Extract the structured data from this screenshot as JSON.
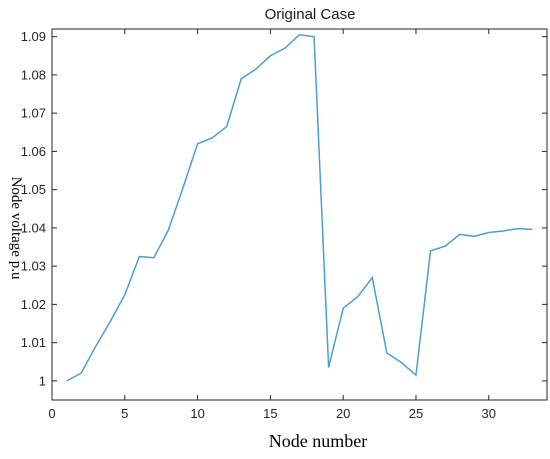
{
  "chart_data": {
    "type": "line",
    "title": "Original Case",
    "xlabel": "Node number",
    "ylabel": "Node voltage p.u",
    "xlim": [
      0,
      34
    ],
    "ylim": [
      0.995,
      1.092
    ],
    "xticks": [
      0,
      5,
      10,
      15,
      20,
      25,
      30
    ],
    "yticks": [
      1,
      1.01,
      1.02,
      1.03,
      1.04,
      1.05,
      1.06,
      1.07,
      1.08,
      1.09
    ],
    "ytick_labels": [
      "1",
      "1.01",
      "1.02",
      "1.03",
      "1.04",
      "1.05",
      "1.06",
      "1.07",
      "1.08",
      "1.09"
    ],
    "grid": false,
    "line_color": "#4a9fd0",
    "series": [
      {
        "x": [
          1,
          2,
          3,
          4,
          5,
          6,
          7,
          8,
          9,
          10,
          11,
          12,
          13,
          14,
          15,
          16,
          17,
          18,
          19,
          20,
          21,
          22,
          23,
          24,
          25,
          26,
          27,
          28,
          29,
          30,
          31,
          32,
          33
        ],
        "values": [
          1.0,
          1.002,
          1.009,
          1.0155,
          1.0225,
          1.0325,
          1.0322,
          1.0395,
          1.0505,
          1.062,
          1.0635,
          1.0665,
          1.079,
          1.0815,
          1.085,
          1.087,
          1.0905,
          1.09,
          1.0035,
          1.019,
          1.022,
          1.027,
          1.0073,
          1.0048,
          1.0015,
          1.034,
          1.0352,
          1.0383,
          1.0378,
          1.0388,
          1.0392,
          1.0398,
          1.0396
        ]
      }
    ]
  }
}
